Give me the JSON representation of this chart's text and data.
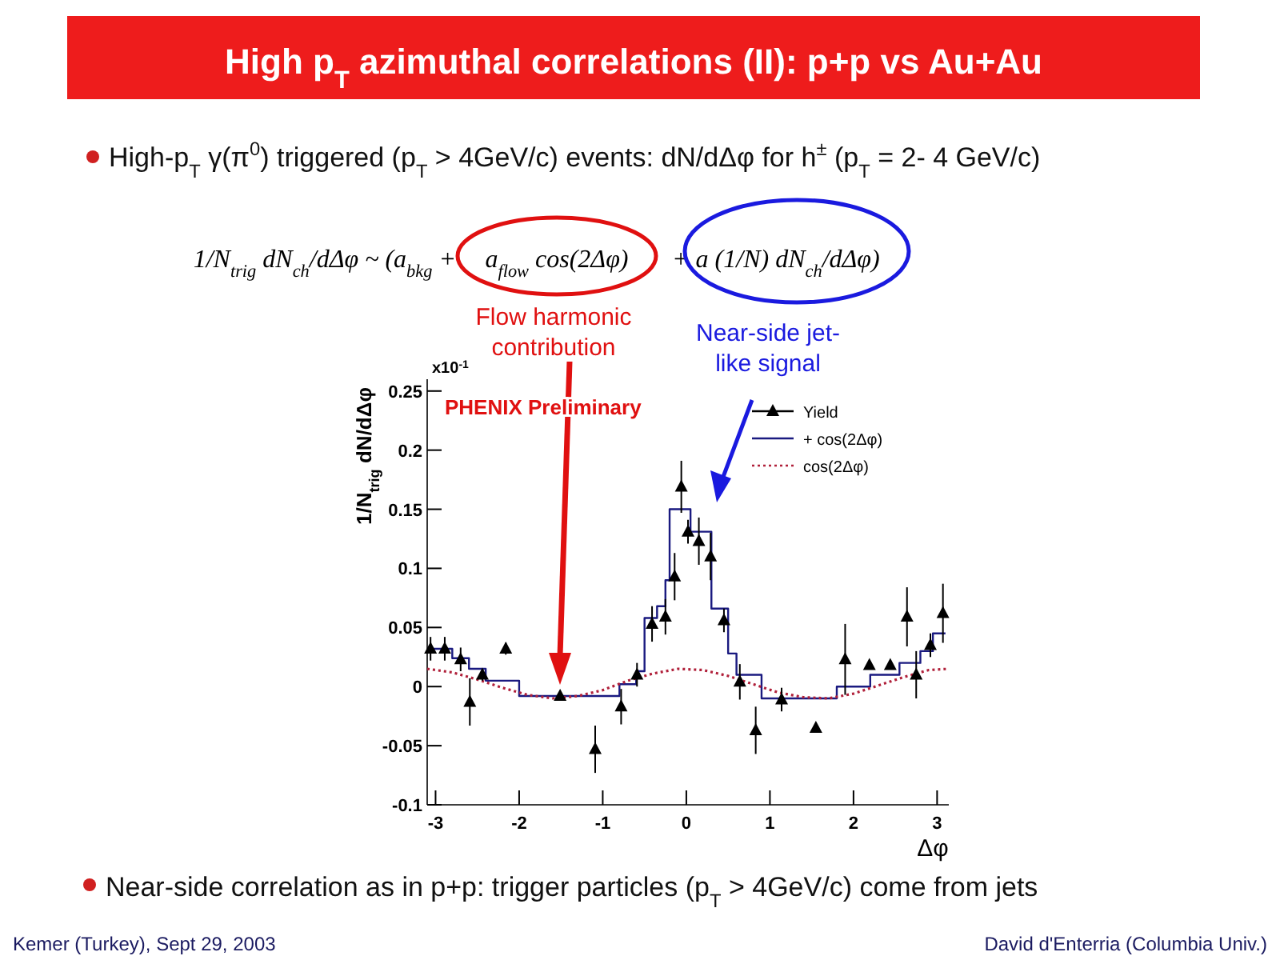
{
  "chart_data": {
    "type": "scatter",
    "title": "High p$_{T}$ azimuthal correlations (II): p+p vs Au+Au",
    "subtitle": "High-p$_{T}$ γ(π$^{0}$) triggered (p$_{T}$ > 4GeV/c) events:  dN/dΔφ for h$^{±}$ (p$_{T}$ = 2- 4 GeV/c)",
    "xlabel": "Δφ",
    "ylabel": "1/N$_{trig}$ dN/dΔφ",
    "annotations": [
      "1/N$_{trig}$ dN$_{ch}$/dΔφ ~ (a$_{bkg}$ +",
      "a$_{flow}$ cos(2Δφ)",
      "+ a (1/N) dN$_{ch}$/dΔφ)",
      "Flow harmonic contribution",
      "Near-side jet-like signal",
      "PHENIX Preliminary",
      "x10$^{-1}$",
      "Near-side correlation as in p+p: trigger particles (p$_{T}$ > 4GeV/c) come from jets",
      "Kemer (Turkey), Sept 29, 2003",
      "David d'Enterria (Columbia Univ.)"
    ],
    "xlim": [
      -3.1,
      3.14
    ],
    "xticks": [
      -3,
      -2,
      -1,
      0,
      1,
      2,
      3
    ],
    "ylim": [
      -0.1,
      0.26
    ],
    "yticks": [
      -0.1,
      -0.05,
      0,
      0.05,
      0.1,
      0.15,
      0.2,
      0.25
    ],
    "legend": "top right",
    "grid": false,
    "series": [
      {
        "name": "Yield",
        "type": "scatter",
        "marker": "triangle",
        "color": "#000000",
        "x": [
          -3.06,
          -2.89,
          -2.7,
          -2.59,
          -2.44,
          -2.16,
          -1.51,
          -1.09,
          -0.78,
          -0.59,
          -0.41,
          -0.25,
          -0.14,
          -0.06,
          0.02,
          0.15,
          0.29,
          0.45,
          0.64,
          0.83,
          1.14,
          1.55,
          1.9,
          2.19,
          2.44,
          2.64,
          2.75,
          2.92,
          3.07
        ],
        "values": [
          0.032,
          0.032,
          0.023,
          -0.013,
          0.01,
          0.032,
          -0.008,
          -0.053,
          -0.017,
          0.01,
          0.053,
          0.059,
          0.093,
          0.169,
          0.131,
          0.123,
          0.11,
          0.056,
          0.004,
          -0.037,
          -0.011,
          -0.035,
          0.023,
          0.018,
          0.018,
          0.059,
          0.01,
          0.035,
          0.062
        ],
        "errors": [
          0.01,
          0.01,
          0.01,
          0.02,
          0.005,
          0.005,
          0.003,
          0.02,
          0.015,
          0.01,
          0.015,
          0.015,
          0.02,
          0.022,
          0.01,
          0.02,
          0.02,
          0.01,
          0.015,
          0.02,
          0.01,
          null,
          0.03,
          0.003,
          0.003,
          0.025,
          0.02,
          0.01,
          0.025
        ]
      },
      {
        "name": "+ cos(2Δφ)",
        "type": "step",
        "marker": "none",
        "line_style": "solid",
        "color": "#1a1a80",
        "x": [
          -3.1,
          -2.8,
          -2.6,
          -2.4,
          -2.0,
          -1.3,
          -0.8,
          -0.6,
          -0.5,
          -0.35,
          -0.25,
          -0.2,
          0.05,
          0.3,
          0.5,
          0.6,
          0.9,
          1.8,
          2.2,
          2.55,
          2.8,
          2.95,
          3.1
        ],
        "values": [
          0.032,
          0.024,
          0.015,
          0.005,
          -0.008,
          -0.008,
          0.002,
          0.013,
          0.058,
          0.068,
          0.09,
          0.15,
          0.131,
          0.066,
          0.028,
          0.01,
          -0.01,
          0.0,
          0.01,
          0.02,
          0.03,
          0.045,
          0.045
        ]
      },
      {
        "name": "cos(2Δφ)",
        "type": "line",
        "marker": "none",
        "line_style": "dotted",
        "color": "#b0203a",
        "x": [
          -3.1,
          -2.8,
          -2.5,
          -2.2,
          -1.9,
          -1.6,
          -1.3,
          -1.0,
          -0.7,
          -0.4,
          -0.1,
          0.2,
          0.5,
          0.8,
          1.1,
          1.4,
          1.7,
          2.0,
          2.3,
          2.6,
          2.9,
          3.14
        ],
        "values": [
          0.015,
          0.012,
          0.006,
          -0.001,
          -0.007,
          -0.01,
          -0.008,
          -0.003,
          0.005,
          0.011,
          0.015,
          0.014,
          0.009,
          0.002,
          -0.005,
          -0.009,
          -0.01,
          -0.006,
          0.001,
          0.008,
          0.014,
          0.015
        ]
      }
    ]
  }
}
